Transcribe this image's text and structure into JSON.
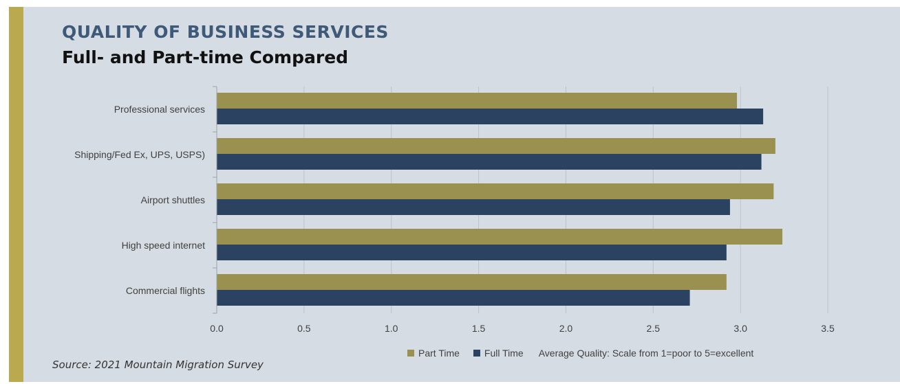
{
  "header": {
    "title": "QUALITY OF BUSINESS SERVICES",
    "subtitle": "Full- and Part-time Compared"
  },
  "colors": {
    "accent_bar": "#bba94f",
    "panel_background": "#d6dce3",
    "title": "#3e5a78"
  },
  "chart_data": {
    "type": "bar",
    "orientation": "horizontal",
    "categories": [
      "Professional services",
      "Shipping/Fed Ex, UPS, USPS)",
      "Airport shuttles",
      "High speed internet",
      "Commercial flights"
    ],
    "series": [
      {
        "name": "Part Time",
        "color": "#9a9150",
        "values": [
          2.98,
          3.2,
          3.19,
          3.24,
          2.92
        ]
      },
      {
        "name": "Full Time",
        "color": "#2b4361",
        "values": [
          3.13,
          3.12,
          2.94,
          2.92,
          2.71
        ]
      }
    ],
    "xlim": [
      0,
      3.5
    ],
    "xticks": [
      0,
      0.5,
      1,
      1.5,
      2,
      2.5,
      3,
      3.5
    ],
    "xtick_labels": [
      "0.0",
      "0.5",
      "1.0",
      "1.5",
      "2.0",
      "2.5",
      "3.0",
      "3.5"
    ],
    "grid": true,
    "legend_position": "bottom",
    "note": "Average Quality: Scale from 1=poor to 5=excellent"
  },
  "footer": {
    "source": "Source: 2021 Mountain Migration Survey"
  }
}
